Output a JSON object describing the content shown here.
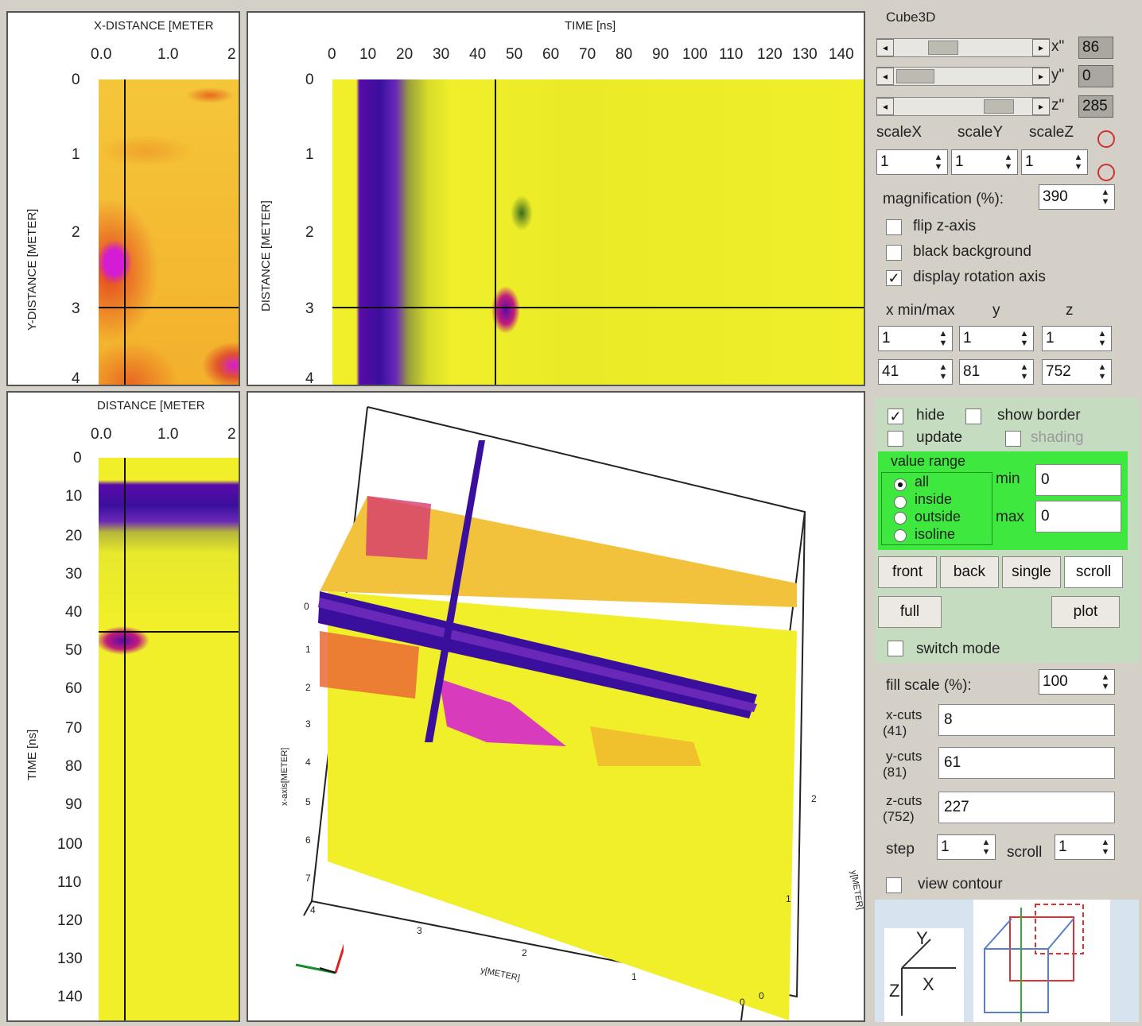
{
  "top_left": {
    "x_title": "X-DISTANCE [METER",
    "x_ticks": [
      "0.0",
      "1.0",
      "2"
    ],
    "y_title": "Y-DISTANCE [METER]",
    "y_ticks": [
      "0",
      "1",
      "2",
      "3",
      "4"
    ]
  },
  "top_right": {
    "x_title": "TIME [ns]",
    "x_ticks": [
      "0",
      "10",
      "20",
      "30",
      "40",
      "50",
      "60",
      "70",
      "80",
      "90",
      "100",
      "110",
      "120",
      "130",
      "140"
    ],
    "y_title": "DISTANCE [METER]",
    "y_ticks": [
      "0",
      "1",
      "2",
      "3",
      "4"
    ]
  },
  "bottom_left": {
    "x_title": "DISTANCE [METER",
    "x_ticks": [
      "0.0",
      "1.0",
      "2"
    ],
    "y_title": "TIME [ns]",
    "y_ticks": [
      "0",
      "10",
      "20",
      "30",
      "40",
      "50",
      "60",
      "70",
      "80",
      "90",
      "100",
      "110",
      "120",
      "130",
      "140"
    ]
  },
  "cube_view": {
    "left_ticks": [
      "0",
      "1",
      "2",
      "3",
      "4",
      "5",
      "6",
      "7"
    ],
    "bottom_ticks": [
      "4",
      "3",
      "2",
      "1",
      "0"
    ],
    "side_ticks": [
      "2",
      "1",
      "0"
    ],
    "left_axis_label": "x-axis[METER]",
    "bottom_axis_label": "y[METER]",
    "side_axis_label": "y[METER]"
  },
  "controls": {
    "group_title": "Cube3D",
    "sliders": [
      {
        "label": "x\"",
        "value": "86",
        "position": 0.22
      },
      {
        "label": "y\"",
        "value": "0",
        "position": 0.0
      },
      {
        "label": "z\"",
        "value": "285",
        "position": 0.72
      }
    ],
    "scale_labels": [
      "scaleX",
      "scaleY",
      "scaleZ"
    ],
    "scale_values": [
      "1",
      "1",
      "1"
    ],
    "magnification_label": "magnification (%):",
    "magnification_value": "390",
    "flip_z": {
      "label": "flip z-axis",
      "checked": false
    },
    "black_bg": {
      "label": "black background",
      "checked": false
    },
    "rotation_axis": {
      "label": "display rotation axis",
      "checked": true
    },
    "minmax_labels": [
      "x min/max",
      "y",
      "z"
    ],
    "min_values": [
      "1",
      "1",
      "1"
    ],
    "max_values": [
      "41",
      "81",
      "752"
    ],
    "hide": {
      "label": "hide",
      "checked": true
    },
    "show_border": {
      "label": "show border",
      "checked": false
    },
    "update": {
      "label": "update",
      "checked": false
    },
    "shading": {
      "label": "shading",
      "checked": false
    },
    "value_range": {
      "title": "value range",
      "options": [
        "all",
        "inside",
        "outside",
        "isoline"
      ],
      "selected": "all",
      "min_label": "min",
      "min_value": "0",
      "max_label": "max",
      "max_value": "0"
    },
    "buttons_row1": [
      "front",
      "back",
      "single",
      "scroll"
    ],
    "buttons_row2": [
      "full",
      "plot"
    ],
    "switch_mode": {
      "label": "switch mode",
      "checked": false
    },
    "fill_scale_label": "fill scale (%):",
    "fill_scale_value": "100",
    "cuts": [
      {
        "label": "x-cuts",
        "count": "(41)",
        "value": "8"
      },
      {
        "label": "y-cuts",
        "count": "(81)",
        "value": "61"
      },
      {
        "label": "z-cuts",
        "count": "(752)",
        "value": "227"
      }
    ],
    "step_label": "step",
    "step_value": "1",
    "scroll_label": "scroll",
    "scroll_value": "1",
    "view_contour": {
      "label": "view contour",
      "checked": false
    },
    "axis_letters": {
      "y": "Y",
      "x": "X",
      "z": "Z"
    },
    "colors": {
      "highlight_green": "#3ee83e",
      "accent_red": "#e03030",
      "panel_yellow": "#f0ef2a",
      "purple": "#5a0aa8"
    }
  }
}
